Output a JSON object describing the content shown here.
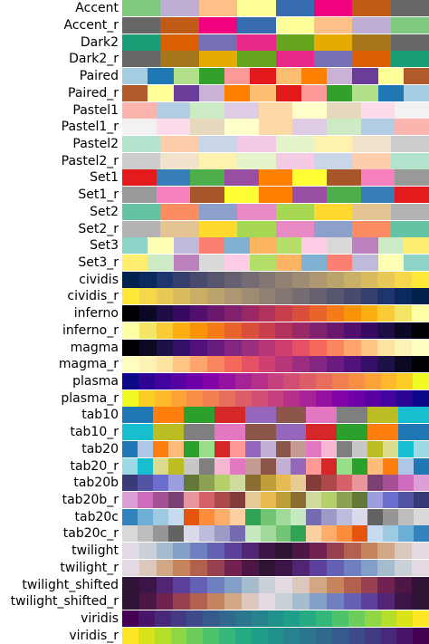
{
  "colormaps": [
    {
      "name": "Accent",
      "colors": [
        "#7fc97f",
        "#beaed4",
        "#fdc086",
        "#ffff99",
        "#386cb0",
        "#f0027f",
        "#bf5b17",
        "#666666"
      ]
    },
    {
      "name": "Accent_r",
      "colors": [
        "#666666",
        "#bf5b17",
        "#f0027f",
        "#386cb0",
        "#ffff99",
        "#fdc086",
        "#beaed4",
        "#7fc97f"
      ]
    },
    {
      "name": "Dark2",
      "colors": [
        "#1b9e77",
        "#d95f02",
        "#7570b3",
        "#e7298a",
        "#66a61e",
        "#e6ab02",
        "#a6761d",
        "#666666"
      ]
    },
    {
      "name": "Dark2_r",
      "colors": [
        "#666666",
        "#a6761d",
        "#e6ab02",
        "#66a61e",
        "#e7298a",
        "#7570b3",
        "#d95f02",
        "#1b9e77"
      ]
    },
    {
      "name": "Paired",
      "colors": [
        "#a6cee3",
        "#1f78b4",
        "#b2df8a",
        "#33a02c",
        "#fb9a99",
        "#e31a1c",
        "#fdbf6f",
        "#ff7f00",
        "#cab2d6",
        "#6a3d9a",
        "#ffff99",
        "#b15928"
      ]
    },
    {
      "name": "Paired_r",
      "colors": [
        "#b15928",
        "#ffff99",
        "#6a3d9a",
        "#cab2d6",
        "#ff7f00",
        "#fdbf6f",
        "#e31a1c",
        "#fb9a99",
        "#33a02c",
        "#b2df8a",
        "#1f78b4",
        "#a6cee3"
      ]
    },
    {
      "name": "Pastel1",
      "colors": [
        "#fbb4ae",
        "#b3cde3",
        "#ccebc5",
        "#decbe4",
        "#fed9a6",
        "#ffffcc",
        "#e5d8bd",
        "#fddaec",
        "#f2f2f2"
      ]
    },
    {
      "name": "Pastel1_r",
      "colors": [
        "#f2f2f2",
        "#fddaec",
        "#e5d8bd",
        "#ffffcc",
        "#fed9a6",
        "#decbe4",
        "#ccebc5",
        "#b3cde3",
        "#fbb4ae"
      ]
    },
    {
      "name": "Pastel2",
      "colors": [
        "#b3e2cd",
        "#fdcdac",
        "#cbd5e8",
        "#f4cae4",
        "#e6f5c9",
        "#fff2ae",
        "#f1e2cc",
        "#cccccc"
      ]
    },
    {
      "name": "Pastel2_r",
      "colors": [
        "#cccccc",
        "#f1e2cc",
        "#fff2ae",
        "#e6f5c9",
        "#f4cae4",
        "#cbd5e8",
        "#fdcdac",
        "#b3e2cd"
      ]
    },
    {
      "name": "Set1",
      "colors": [
        "#e41a1c",
        "#377eb8",
        "#4daf4a",
        "#984ea3",
        "#ff7f00",
        "#ffff33",
        "#a65628",
        "#f781bf",
        "#999999"
      ]
    },
    {
      "name": "Set1_r",
      "colors": [
        "#999999",
        "#f781bf",
        "#a65628",
        "#ffff33",
        "#ff7f00",
        "#984ea3",
        "#4daf4a",
        "#377eb8",
        "#e41a1c"
      ]
    },
    {
      "name": "Set2",
      "colors": [
        "#66c2a5",
        "#fc8d62",
        "#8da0cb",
        "#e78ac3",
        "#a6d854",
        "#ffd92f",
        "#e5c494",
        "#b3b3b3"
      ]
    },
    {
      "name": "Set2_r",
      "colors": [
        "#b3b3b3",
        "#e5c494",
        "#ffd92f",
        "#a6d854",
        "#e78ac3",
        "#8da0cb",
        "#fc8d62",
        "#66c2a5"
      ]
    },
    {
      "name": "Set3",
      "colors": [
        "#8dd3c7",
        "#ffffb3",
        "#bebada",
        "#fb8072",
        "#80b1d3",
        "#fdb462",
        "#b3de69",
        "#fccde5",
        "#d9d9d9",
        "#bc80bd",
        "#ccebc5",
        "#ffed6f"
      ]
    },
    {
      "name": "Set3_r",
      "colors": [
        "#ffed6f",
        "#ccebc5",
        "#bc80bd",
        "#d9d9d9",
        "#fccde5",
        "#b3de69",
        "#fdb462",
        "#80b1d3",
        "#fb8072",
        "#bebada",
        "#ffffb3",
        "#8dd3c7"
      ]
    },
    {
      "name": "cividis",
      "colors": [
        "#00224e",
        "#0a2a5e",
        "#1f356d",
        "#36406e",
        "#484a6e",
        "#58556f",
        "#666070",
        "#756b72",
        "#827673",
        "#908173",
        "#9e8c72",
        "#ac9770",
        "#bba36c",
        "#c9b066",
        "#d8bc5f",
        "#e7c957",
        "#f6d74b",
        "#fee838"
      ]
    },
    {
      "name": "cividis_r",
      "colors": [
        "#fee838",
        "#f6d74b",
        "#e7c957",
        "#d8bc5f",
        "#c9b066",
        "#bba36c",
        "#ac9770",
        "#9e8c72",
        "#908173",
        "#827673",
        "#756b72",
        "#666070",
        "#58556f",
        "#484a6e",
        "#36406e",
        "#1f356d",
        "#0a2a5e",
        "#00224e"
      ]
    },
    {
      "name": "inferno",
      "colors": [
        "#000004",
        "#0b0724",
        "#1e0c45",
        "#380962",
        "#51106e",
        "#6a176e",
        "#81206c",
        "#9a2865",
        "#b1325a",
        "#c73e4c",
        "#da4f3a",
        "#e9642a",
        "#f47b17",
        "#fa9407",
        "#fcaf0f",
        "#f9cb35",
        "#f3e565",
        "#fcffa4"
      ]
    },
    {
      "name": "inferno_r",
      "colors": [
        "#fcffa4",
        "#f3e565",
        "#f9cb35",
        "#fcaf0f",
        "#fa9407",
        "#f47b17",
        "#e9642a",
        "#da4f3a",
        "#c73e4c",
        "#b1325a",
        "#9a2865",
        "#81206c",
        "#6a176e",
        "#51106e",
        "#380962",
        "#1e0c45",
        "#0b0724",
        "#000004"
      ]
    },
    {
      "name": "magma",
      "colors": [
        "#000004",
        "#0b0924",
        "#1d1147",
        "#360f6b",
        "#51127c",
        "#6a1c81",
        "#822681",
        "#9b2e7e",
        "#b63679",
        "#cf4070",
        "#e55064",
        "#f4695c",
        "#fb8761",
        "#fea56e",
        "#fec484",
        "#fde3a0",
        "#fcf2b6",
        "#fcfdbf"
      ]
    },
    {
      "name": "magma_r",
      "colors": [
        "#fcfdbf",
        "#fcf2b6",
        "#fde3a0",
        "#fec484",
        "#fea56e",
        "#fb8761",
        "#f4695c",
        "#e55064",
        "#cf4070",
        "#b63679",
        "#9b2e7e",
        "#822681",
        "#6a1c81",
        "#51127c",
        "#360f6b",
        "#1d1147",
        "#0b0924",
        "#000004"
      ]
    },
    {
      "name": "plasma",
      "colors": [
        "#0d0887",
        "#2c0594",
        "#43039e",
        "#5902a3",
        "#6e00a8",
        "#8305a7",
        "#9511a1",
        "#a72197",
        "#b6308b",
        "#c5407e",
        "#d14e72",
        "#dd5e66",
        "#e76e5b",
        "#f07f4f",
        "#f79044",
        "#fca338",
        "#fdb82b",
        "#fccd25",
        "#f0f921"
      ]
    },
    {
      "name": "plasma_r",
      "colors": [
        "#f0f921",
        "#fccd25",
        "#fdb82b",
        "#fca338",
        "#f79044",
        "#f07f4f",
        "#e76e5b",
        "#dd5e66",
        "#d14e72",
        "#c5407e",
        "#b6308b",
        "#a72197",
        "#9511a1",
        "#8305a7",
        "#6e00a8",
        "#5902a3",
        "#43039e",
        "#2c0594",
        "#0d0887"
      ]
    },
    {
      "name": "tab10",
      "colors": [
        "#1f77b4",
        "#ff7f0e",
        "#2ca02c",
        "#d62728",
        "#9467bd",
        "#8c564b",
        "#e377c2",
        "#7f7f7f",
        "#bcbd22",
        "#17becf"
      ]
    },
    {
      "name": "tab10_r",
      "colors": [
        "#17becf",
        "#bcbd22",
        "#7f7f7f",
        "#e377c2",
        "#8c564b",
        "#9467bd",
        "#d62728",
        "#2ca02c",
        "#ff7f0e",
        "#1f77b4"
      ]
    },
    {
      "name": "tab20",
      "colors": [
        "#1f77b4",
        "#aec7e8",
        "#ff7f0e",
        "#ffbb78",
        "#2ca02c",
        "#98df8a",
        "#d62728",
        "#ff9896",
        "#9467bd",
        "#c5b0d5",
        "#8c564b",
        "#c49c94",
        "#e377c2",
        "#f7b6d2",
        "#7f7f7f",
        "#c7c7c7",
        "#bcbd22",
        "#dbdb8d",
        "#17becf",
        "#9edae5"
      ]
    },
    {
      "name": "tab20_r",
      "colors": [
        "#9edae5",
        "#17becf",
        "#dbdb8d",
        "#bcbd22",
        "#c7c7c7",
        "#7f7f7f",
        "#f7b6d2",
        "#e377c2",
        "#c49c94",
        "#8c564b",
        "#c5b0d5",
        "#9467bd",
        "#ff9896",
        "#d62728",
        "#98df8a",
        "#2ca02c",
        "#ffbb78",
        "#ff7f0e",
        "#aec7e8",
        "#1f77b4"
      ]
    },
    {
      "name": "tab20b",
      "colors": [
        "#393b79",
        "#5254a3",
        "#6b6ecf",
        "#9c9ede",
        "#637939",
        "#8ca252",
        "#b5cf6b",
        "#cedb9c",
        "#8c6d31",
        "#bd9e39",
        "#e7ba52",
        "#e7cb94",
        "#843c39",
        "#ad494a",
        "#d6616b",
        "#e7969c",
        "#7b4173",
        "#a55194",
        "#ce6dbd",
        "#de9ed6"
      ]
    },
    {
      "name": "tab20b_r",
      "colors": [
        "#de9ed6",
        "#ce6dbd",
        "#a55194",
        "#7b4173",
        "#e7969c",
        "#d6616b",
        "#ad494a",
        "#843c39",
        "#e7cb94",
        "#e7ba52",
        "#bd9e39",
        "#8c6d31",
        "#cedb9c",
        "#b5cf6b",
        "#8ca252",
        "#637939",
        "#9c9ede",
        "#6b6ecf",
        "#5254a3",
        "#393b79"
      ]
    },
    {
      "name": "tab20c",
      "colors": [
        "#3182bd",
        "#6baed6",
        "#9ecae1",
        "#c6dbef",
        "#e6550d",
        "#fd8d3c",
        "#fdae6b",
        "#fdd0a2",
        "#31a354",
        "#74c476",
        "#a1d99b",
        "#c7e9c0",
        "#756bb1",
        "#9e9ac8",
        "#bcbddc",
        "#dadaeb",
        "#636363",
        "#969696",
        "#bdbdbd",
        "#d9d9d9"
      ]
    },
    {
      "name": "tab20c_r",
      "colors": [
        "#d9d9d9",
        "#bdbdbd",
        "#969696",
        "#636363",
        "#dadaeb",
        "#bcbddc",
        "#9e9ac8",
        "#756bb1",
        "#c7e9c0",
        "#a1d99b",
        "#74c476",
        "#31a354",
        "#fdd0a2",
        "#fdae6b",
        "#fd8d3c",
        "#e6550d",
        "#c6dbef",
        "#9ecae1",
        "#6baed6",
        "#3182bd"
      ]
    },
    {
      "name": "twilight",
      "colors": [
        "#e2d9e2",
        "#c9d0d8",
        "#a5bccf",
        "#849fc7",
        "#6e80c0",
        "#6460b4",
        "#5c409b",
        "#522474",
        "#3b1547",
        "#2f1436",
        "#4d1645",
        "#722251",
        "#964052",
        "#b2614f",
        "#c5845b",
        "#d2a785",
        "#dbc7bc",
        "#e2d9e2"
      ]
    },
    {
      "name": "twilight_r",
      "colors": [
        "#e2d9e2",
        "#dbc7bc",
        "#d2a785",
        "#c5845b",
        "#b2614f",
        "#964052",
        "#722251",
        "#4d1645",
        "#2f1436",
        "#3b1547",
        "#522474",
        "#5c409b",
        "#6460b4",
        "#6e80c0",
        "#849fc7",
        "#a5bccf",
        "#c9d0d8",
        "#e2d9e2"
      ]
    },
    {
      "name": "twilight_shifted",
      "colors": [
        "#2f1436",
        "#3b1547",
        "#522474",
        "#5c409b",
        "#6460b4",
        "#6e80c0",
        "#849fc7",
        "#a5bccf",
        "#c9d0d8",
        "#e2d9e2",
        "#dbc7bc",
        "#d2a785",
        "#c5845b",
        "#b2614f",
        "#964052",
        "#722251",
        "#4d1645",
        "#2f1436"
      ]
    },
    {
      "name": "twilight_shifted_r",
      "colors": [
        "#2f1436",
        "#4d1645",
        "#722251",
        "#964052",
        "#b2614f",
        "#c5845b",
        "#d2a785",
        "#dbc7bc",
        "#e2d9e2",
        "#c9d0d8",
        "#a5bccf",
        "#849fc7",
        "#6e80c0",
        "#6460b4",
        "#5c409b",
        "#522474",
        "#3b1547",
        "#2f1436"
      ]
    },
    {
      "name": "viridis",
      "colors": [
        "#440154",
        "#481668",
        "#482878",
        "#443983",
        "#3e4a89",
        "#375a8c",
        "#31688e",
        "#2b758e",
        "#26828e",
        "#21918c",
        "#1f9e89",
        "#25ab82",
        "#35b779",
        "#4ec36b",
        "#6ccd5a",
        "#8fd744",
        "#b5de2b",
        "#dae319",
        "#fde725"
      ]
    },
    {
      "name": "viridis_r",
      "colors": [
        "#fde725",
        "#dae319",
        "#b5de2b",
        "#8fd744",
        "#6ccd5a",
        "#4ec36b",
        "#35b779",
        "#25ab82",
        "#1f9e89",
        "#21918c",
        "#26828e",
        "#2b758e",
        "#31688e",
        "#375a8c",
        "#3e4a89",
        "#443983",
        "#482878",
        "#481668",
        "#440154"
      ]
    }
  ]
}
